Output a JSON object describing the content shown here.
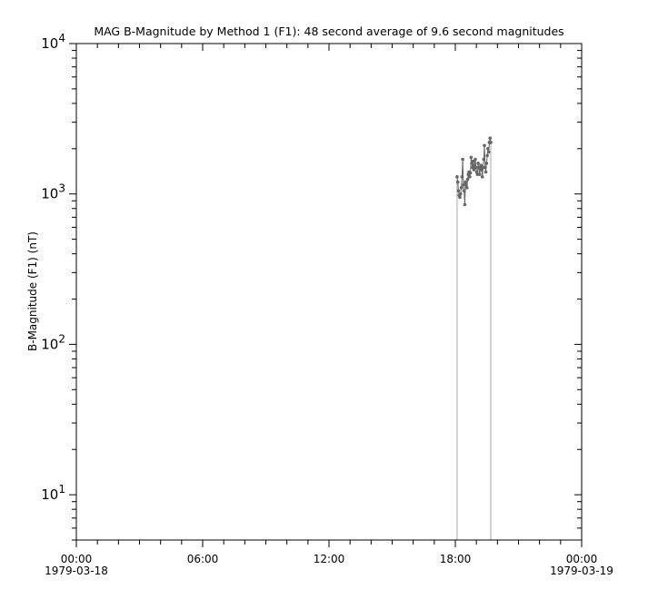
{
  "chart_data": {
    "type": "scatter",
    "title": "MAG  B-Magnitude by Method 1 (F1): 48 second average of 9.6 second magnitudes",
    "xlabel": "",
    "ylabel": "B-Magnitude (F1) (nT)",
    "yscale": "log",
    "ylim": [
      5,
      10000
    ],
    "xlim": [
      "1979-03-18 00:00",
      "1979-03-19 00:00"
    ],
    "x_ticks": [
      {
        "time": "00:00",
        "date": "1979-03-18"
      },
      {
        "time": "06:00",
        "date": ""
      },
      {
        "time": "12:00",
        "date": ""
      },
      {
        "time": "18:00",
        "date": ""
      },
      {
        "time": "00:00",
        "date": "1979-03-19"
      }
    ],
    "y_ticks": [
      {
        "base": "10",
        "exp": "1",
        "value": 10
      },
      {
        "base": "10",
        "exp": "2",
        "value": 100
      },
      {
        "base": "10",
        "exp": "3",
        "value": 1000
      },
      {
        "base": "10",
        "exp": "4",
        "value": 10000
      }
    ],
    "grid": false,
    "marker_color": "#666666",
    "fill_line_color": "#aaaaaa",
    "x": [
      "18:05",
      "18:07",
      "18:09",
      "18:11",
      "18:13",
      "18:15",
      "18:17",
      "18:19",
      "18:21",
      "18:23",
      "18:25",
      "18:27",
      "18:29",
      "18:31",
      "18:33",
      "18:35",
      "18:37",
      "18:39",
      "18:41",
      "18:43",
      "18:45",
      "18:47",
      "18:49",
      "18:51",
      "18:53",
      "18:55",
      "18:57",
      "18:59",
      "19:01",
      "19:03",
      "19:05",
      "19:07",
      "19:09",
      "19:11",
      "19:13",
      "19:15",
      "19:17",
      "19:19",
      "19:21",
      "19:23",
      "19:25",
      "19:27",
      "19:29",
      "19:31",
      "19:33",
      "19:35",
      "19:37",
      "19:39",
      "19:41"
    ],
    "y": [
      1300,
      1200,
      1050,
      980,
      950,
      1000,
      1100,
      1300,
      1700,
      1150,
      1050,
      850,
      1200,
      1150,
      1100,
      1250,
      1350,
      1400,
      1300,
      1380,
      1750,
      1600,
      1500,
      1650,
      1450,
      1550,
      1700,
      1500,
      1400,
      1350,
      1600,
      1500,
      1350,
      1450,
      1550,
      1450,
      1300,
      1500,
      1700,
      2100,
      1500,
      1400,
      1600,
      1800,
      2000,
      1900,
      2200,
      2350,
      2200
    ]
  }
}
